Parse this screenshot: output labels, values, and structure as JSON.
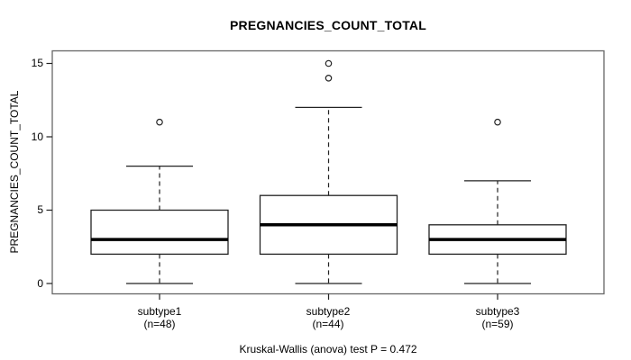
{
  "colors": {
    "background": "#ffffff",
    "line": "#222222",
    "frame": "#666666",
    "median": "#000000",
    "text": "#000000",
    "box_fill": "#ffffff"
  },
  "chart_data": {
    "type": "boxplot",
    "title": "PREGNANCIES_COUNT_TOTAL",
    "ylabel": "PREGNANCIES_COUNT_TOTAL",
    "xlabel": "",
    "caption": "Kruskal-Wallis (anova) test P = 0.472",
    "yticks": [
      0,
      5,
      10,
      15
    ],
    "ylim": [
      -0.6,
      15.6
    ],
    "grid": false,
    "legend": false,
    "groups": [
      {
        "label": "subtype1",
        "sublabel": "(n=48)",
        "n": 48,
        "q1": 2,
        "median": 3,
        "q3": 5,
        "whisker_low": 0,
        "whisker_high": 8,
        "outliers": [
          11
        ]
      },
      {
        "label": "subtype2",
        "sublabel": "(n=44)",
        "n": 44,
        "q1": 2,
        "median": 4,
        "q3": 6,
        "whisker_low": 0,
        "whisker_high": 12,
        "outliers": [
          14,
          15
        ]
      },
      {
        "label": "subtype3",
        "sublabel": "(n=59)",
        "n": 59,
        "q1": 2,
        "median": 3,
        "q3": 4,
        "whisker_low": 0,
        "whisker_high": 7,
        "outliers": [
          11
        ]
      }
    ]
  }
}
